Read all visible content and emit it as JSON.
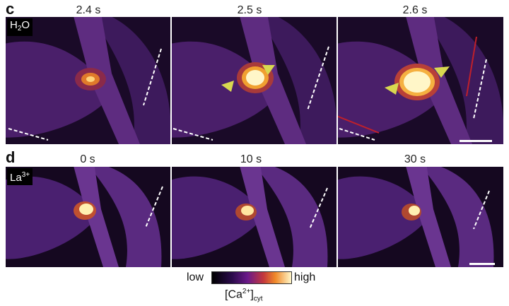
{
  "panel_c": {
    "letter": "c",
    "solution_label": "H2O",
    "solution_base": "H",
    "solution_sub": "2",
    "solution_tail": "O",
    "time_labels": [
      "2.4 s",
      "2.5 s",
      "2.6 s"
    ]
  },
  "panel_d": {
    "letter": "d",
    "solution_label": "La3+",
    "solution_base": "La",
    "solution_sup": "3+",
    "time_labels": [
      "0 s",
      "10 s",
      "30 s"
    ]
  },
  "legend": {
    "low_label": "low",
    "high_label": "high",
    "quantity_label": "[Ca2+]cyt",
    "quantity_base": "[Ca",
    "quantity_sup": "2+",
    "quantity_close": "]",
    "quantity_sub": "cyt"
  },
  "colors": {
    "background_dark": "#12061c",
    "tissue": "#5a2a7a",
    "signal_high": "#fff6c8",
    "signal_mid": "#f0a030",
    "arrowhead": "#d8d850",
    "guide_line": "#ffffff",
    "red_line": "#c0202a"
  }
}
